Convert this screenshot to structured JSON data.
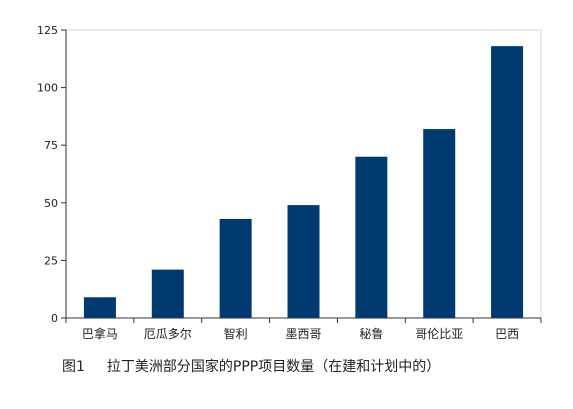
{
  "chart_data": {
    "type": "bar",
    "categories": [
      "巴拿马",
      "厄瓜多尔",
      "智利",
      "墨西哥",
      "秘鲁",
      "哥伦比亚",
      "巴西"
    ],
    "values": [
      9,
      21,
      43,
      49,
      70,
      82,
      118
    ],
    "ylim": [
      0,
      125
    ],
    "yticks": [
      0,
      25,
      50,
      75,
      100,
      125
    ],
    "bar_color": "#003a70",
    "grid": false
  },
  "caption": {
    "number": "图1",
    "text": "拉丁美洲部分国家的PPP项目数量（在建和计划中的）"
  }
}
